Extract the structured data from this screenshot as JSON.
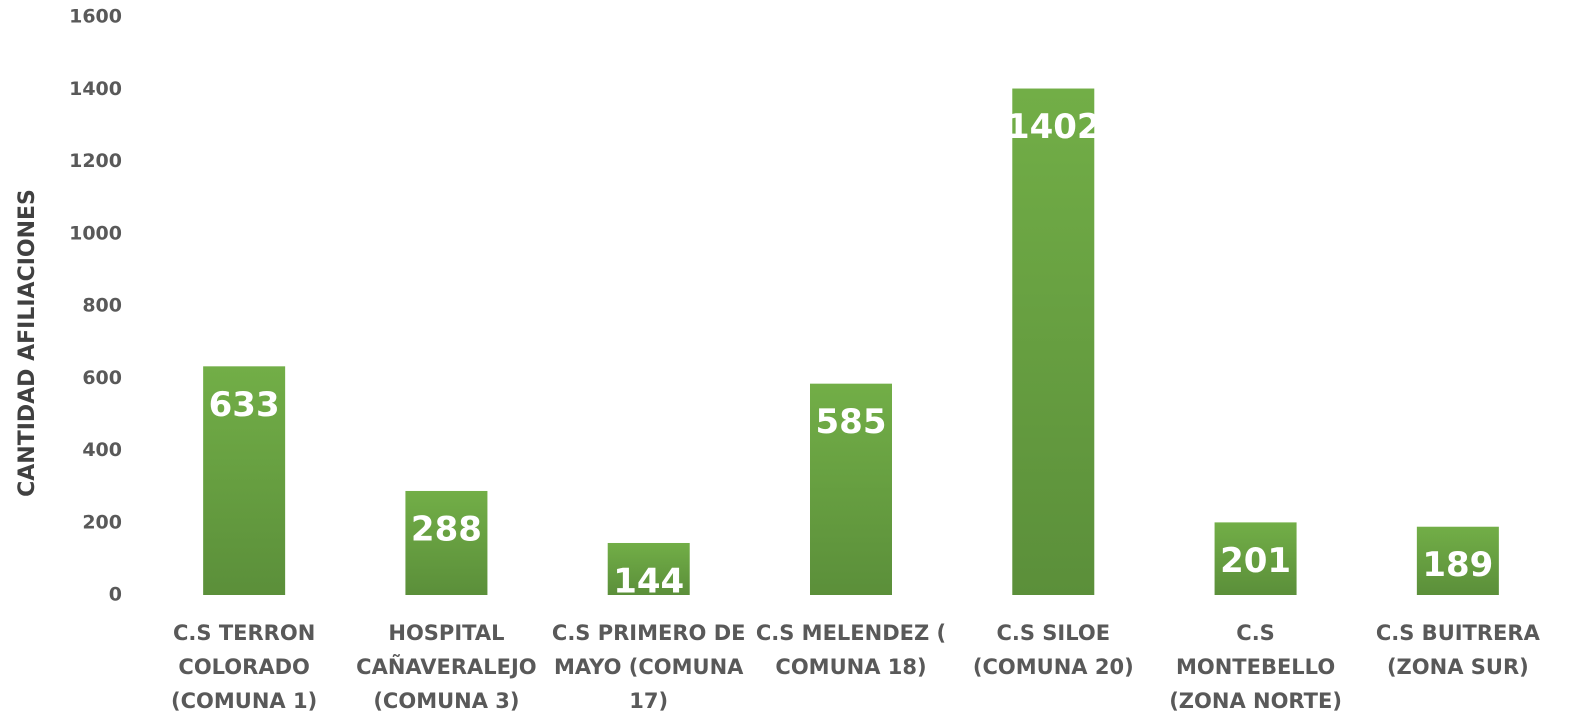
{
  "chart_data": {
    "type": "bar",
    "y_label": "CANTIDAD AFILIACIONES",
    "categories": [
      "C.S TERRON COLORADO (COMUNA 1)",
      "HOSPITAL CAÑAVERALEJO (COMUNA 3)",
      "C.S PRIMERO DE MAYO (COMUNA 17)",
      "C.S MELENDEZ ( COMUNA 18)",
      "C.S SILOE (COMUNA 20)",
      "C.S MONTEBELLO (ZONA NORTE)",
      "C.S BUITRERA (ZONA SUR)"
    ],
    "values": [
      633,
      288,
      144,
      585,
      1402,
      201,
      189
    ],
    "color": "#70ad47",
    "ylim": [
      0,
      1600
    ],
    "yticks": [
      0,
      200,
      400,
      600,
      800,
      1000,
      1200,
      1400,
      1600
    ],
    "grid": false
  }
}
